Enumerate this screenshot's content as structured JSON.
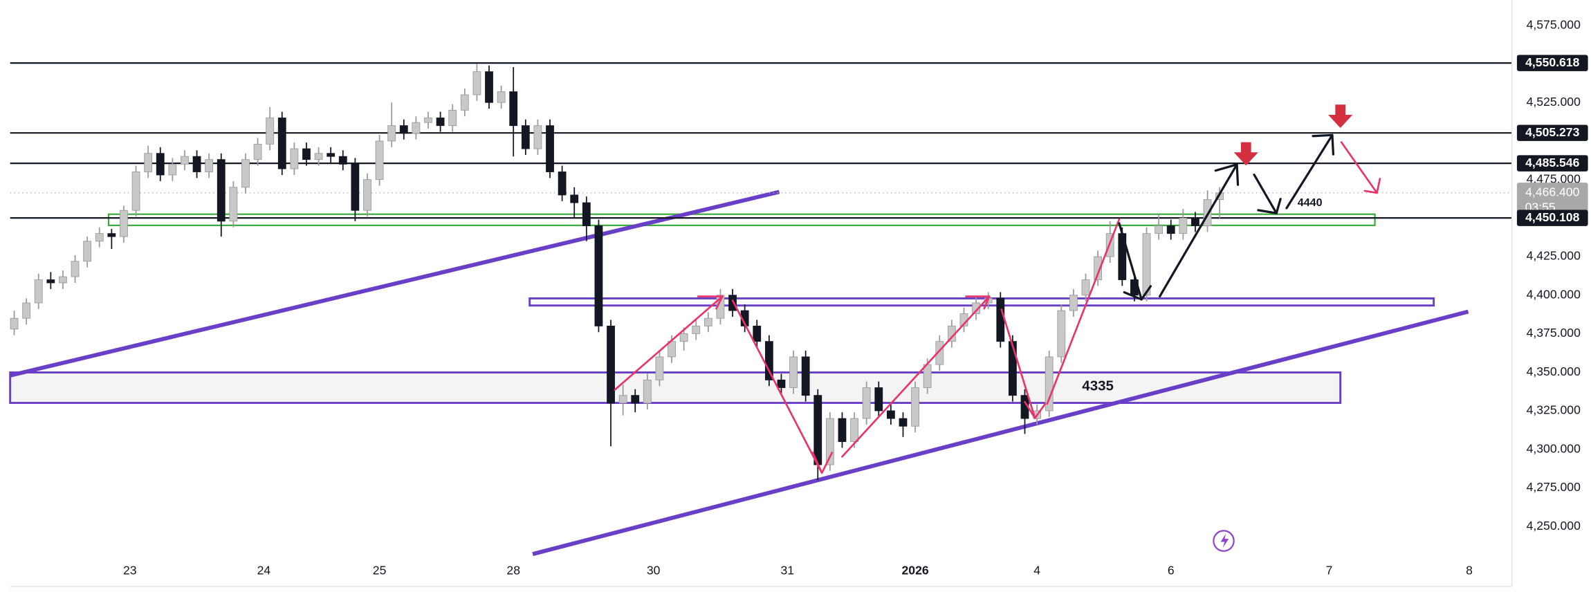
{
  "chart_data": {
    "type": "candlestick",
    "xlim": [
      -0.5,
      123
    ],
    "ylim": [
      4211,
      4591.4
    ],
    "xticks": [
      {
        "value": 9.5,
        "label": "23"
      },
      {
        "value": 20.5,
        "label": "24"
      },
      {
        "value": 30,
        "label": "25"
      },
      {
        "value": 41,
        "label": "28"
      },
      {
        "value": 52.5,
        "label": "30"
      },
      {
        "value": 63.5,
        "label": "31"
      },
      {
        "value": 74,
        "label": "2026"
      },
      {
        "value": 84,
        "label": "4"
      },
      {
        "value": 95,
        "label": "6"
      },
      {
        "value": 108,
        "label": "7"
      },
      {
        "value": 119.5,
        "label": "8"
      }
    ],
    "yticks": [
      {
        "value": 4575,
        "label": "4,575.000"
      },
      {
        "value": 4525,
        "label": "4,525.000"
      },
      {
        "value": 4475,
        "label": "4,475.000"
      },
      {
        "value": 4425,
        "label": "4,425.000"
      },
      {
        "value": 4400,
        "label": "4,400.000"
      },
      {
        "value": 4375,
        "label": "4,375.000"
      },
      {
        "value": 4350,
        "label": "4,350.000"
      },
      {
        "value": 4325,
        "label": "4,325.000"
      },
      {
        "value": 4300,
        "label": "4,300.000"
      },
      {
        "value": 4275,
        "label": "4,275.000"
      },
      {
        "value": 4250,
        "label": "4,250.000"
      }
    ],
    "levels": [
      {
        "value": 4550.618,
        "label": "4,550.618"
      },
      {
        "value": 4505.273,
        "label": "4,505.273"
      },
      {
        "value": 4485.546,
        "label": "4,485.546"
      },
      {
        "value": 4450.108,
        "label": "4,450.108"
      }
    ],
    "current": {
      "value": 4466.4,
      "label": "4,466.400",
      "countdown": "03:55"
    },
    "annotations": [
      "4335",
      "4440"
    ],
    "up_color": "#c8c8c8",
    "down_color": "#131722",
    "candles": [
      [
        4378,
        4390,
        4374,
        4385
      ],
      [
        4385,
        4398,
        4381,
        4395
      ],
      [
        4395,
        4414,
        4391,
        4410
      ],
      [
        4410,
        4415,
        4404,
        4408
      ],
      [
        4408,
        4416,
        4404,
        4412
      ],
      [
        4412,
        4426,
        4408,
        4422
      ],
      [
        4422,
        4438,
        4418,
        4435
      ],
      [
        4435,
        4444,
        4431,
        4440
      ],
      [
        4440,
        4443,
        4430,
        4438
      ],
      [
        4438,
        4458,
        4434,
        4455
      ],
      [
        4455,
        4484,
        4451,
        4480
      ],
      [
        4480,
        4497,
        4476,
        4492
      ],
      [
        4492,
        4496,
        4474,
        4478
      ],
      [
        4478,
        4489,
        4474,
        4485
      ],
      [
        4485,
        4494,
        4481,
        4490
      ],
      [
        4490,
        4494,
        4476,
        4480
      ],
      [
        4480,
        4492,
        4476,
        4488
      ],
      [
        4488,
        4492,
        4438,
        4448
      ],
      [
        4448,
        4474,
        4444,
        4470
      ],
      [
        4470,
        4492,
        4466,
        4488
      ],
      [
        4488,
        4502,
        4484,
        4498
      ],
      [
        4498,
        4522,
        4494,
        4515
      ],
      [
        4515,
        4519,
        4478,
        4482
      ],
      [
        4482,
        4499,
        4478,
        4495
      ],
      [
        4495,
        4499,
        4484,
        4488
      ],
      [
        4488,
        4496,
        4484,
        4492
      ],
      [
        4492,
        4496,
        4486,
        4490
      ],
      [
        4490,
        4494,
        4481,
        4485
      ],
      [
        4485,
        4489,
        4448,
        4455
      ],
      [
        4455,
        4479,
        4451,
        4475
      ],
      [
        4475,
        4504,
        4471,
        4500
      ],
      [
        4500,
        4525,
        4496,
        4510
      ],
      [
        4510,
        4514,
        4501,
        4505
      ],
      [
        4505,
        4516,
        4501,
        4512
      ],
      [
        4512,
        4519,
        4508,
        4515
      ],
      [
        4515,
        4519,
        4506,
        4510
      ],
      [
        4510,
        4524,
        4506,
        4520
      ],
      [
        4520,
        4534,
        4516,
        4530
      ],
      [
        4530,
        4550,
        4526,
        4545
      ],
      [
        4545,
        4549,
        4521,
        4525
      ],
      [
        4525,
        4536,
        4521,
        4532
      ],
      [
        4532,
        4548,
        4490,
        4510
      ],
      [
        4510,
        4514,
        4491,
        4495
      ],
      [
        4495,
        4514,
        4491,
        4510
      ],
      [
        4510,
        4514,
        4476,
        4480
      ],
      [
        4480,
        4484,
        4461,
        4465
      ],
      [
        4465,
        4470,
        4450,
        4460
      ],
      [
        4460,
        4464,
        4435,
        4445
      ],
      [
        4445,
        4449,
        4376,
        4380
      ],
      [
        4380,
        4384,
        4302,
        4330
      ],
      [
        4330,
        4342,
        4322,
        4335
      ],
      [
        4335,
        4339,
        4324,
        4330
      ],
      [
        4330,
        4349,
        4326,
        4345
      ],
      [
        4345,
        4364,
        4341,
        4360
      ],
      [
        4360,
        4374,
        4356,
        4370
      ],
      [
        4370,
        4379,
        4364,
        4375
      ],
      [
        4375,
        4384,
        4371,
        4380
      ],
      [
        4380,
        4389,
        4376,
        4385
      ],
      [
        4385,
        4404,
        4381,
        4400
      ],
      [
        4400,
        4404,
        4386,
        4390
      ],
      [
        4390,
        4394,
        4376,
        4380
      ],
      [
        4380,
        4384,
        4366,
        4370
      ],
      [
        4370,
        4374,
        4341,
        4345
      ],
      [
        4345,
        4349,
        4336,
        4340
      ],
      [
        4340,
        4364,
        4336,
        4360
      ],
      [
        4360,
        4364,
        4331,
        4335
      ],
      [
        4335,
        4339,
        4280,
        4290
      ],
      [
        4290,
        4324,
        4286,
        4320
      ],
      [
        4320,
        4324,
        4301,
        4305
      ],
      [
        4305,
        4324,
        4301,
        4320
      ],
      [
        4320,
        4344,
        4316,
        4340
      ],
      [
        4340,
        4344,
        4321,
        4325
      ],
      [
        4325,
        4329,
        4316,
        4320
      ],
      [
        4320,
        4324,
        4308,
        4315
      ],
      [
        4315,
        4344,
        4311,
        4340
      ],
      [
        4340,
        4359,
        4336,
        4355
      ],
      [
        4355,
        4374,
        4351,
        4370
      ],
      [
        4370,
        4384,
        4366,
        4380
      ],
      [
        4380,
        4392,
        4376,
        4388
      ],
      [
        4388,
        4399,
        4384,
        4395
      ],
      [
        4395,
        4402,
        4391,
        4398
      ],
      [
        4398,
        4402,
        4366,
        4370
      ],
      [
        4370,
        4374,
        4331,
        4335
      ],
      [
        4335,
        4339,
        4310,
        4320
      ],
      [
        4320,
        4329,
        4316,
        4325
      ],
      [
        4325,
        4364,
        4321,
        4360
      ],
      [
        4360,
        4394,
        4356,
        4390
      ],
      [
        4390,
        4404,
        4386,
        4400
      ],
      [
        4400,
        4414,
        4396,
        4410
      ],
      [
        4410,
        4429,
        4406,
        4425
      ],
      [
        4425,
        4448,
        4421,
        4440
      ],
      [
        4440,
        4444,
        4406,
        4410
      ],
      [
        4410,
        4414,
        4396,
        4400
      ],
      [
        4400,
        4444,
        4396,
        4440
      ],
      [
        4440,
        4452,
        4436,
        4445
      ],
      [
        4445,
        4449,
        4436,
        4440
      ],
      [
        4440,
        4456,
        4436,
        4450
      ],
      [
        4450,
        4454,
        4441,
        4445
      ],
      [
        4445,
        4468,
        4441,
        4462
      ],
      [
        4462,
        4470,
        4450,
        4466.4
      ]
    ]
  }
}
